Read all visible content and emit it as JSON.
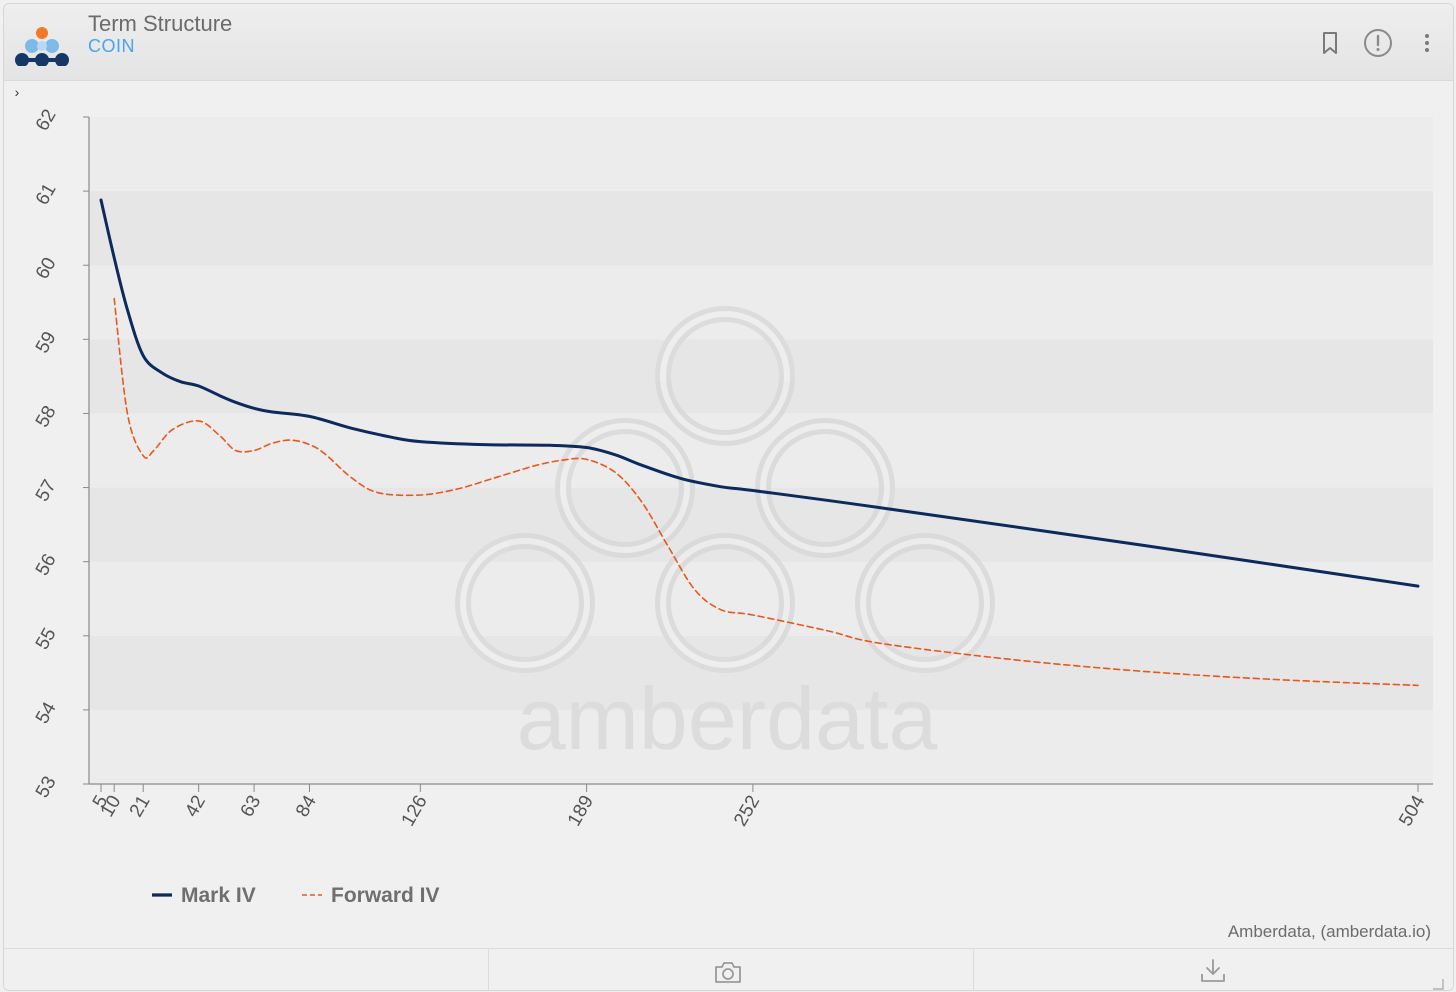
{
  "header": {
    "title": "Term Structure",
    "subtitle": "COIN",
    "bookmark_icon": "bookmark-icon",
    "info_icon": "alert-circle-icon",
    "menu_icon": "more-vertical-icon",
    "panel_toggle_icon": "chevron-right-icon",
    "panel_toggle_glyph": "›"
  },
  "watermark": "amberdata",
  "attribution": "Amberdata, (amberdata.io)",
  "footer": {
    "camera_icon": "camera-icon",
    "download_icon": "download-icon"
  },
  "colors": {
    "mark_iv": "#0d2a5c",
    "forward_iv": "#e8571c",
    "subtitle": "#4aa3f0",
    "band": "#e6e6e6"
  },
  "chart_data": {
    "type": "line",
    "ylim": [
      53,
      62
    ],
    "xlim": [
      5,
      504
    ],
    "y_ticks": [
      53,
      54,
      55,
      56,
      57,
      58,
      59,
      60,
      61,
      62
    ],
    "x_ticks": [
      5,
      10,
      21,
      42,
      63,
      84,
      126,
      189,
      252,
      504
    ],
    "grid": "horizontal bands",
    "legend_position": "bottom-left",
    "series": [
      {
        "name": "Mark IV",
        "style": "solid",
        "x": [
          5,
          10,
          15,
          21,
          28,
          35,
          42,
          50,
          56,
          63,
          70,
          84,
          100,
          115,
          126,
          150,
          175,
          189,
          200,
          210,
          225,
          240,
          252,
          300,
          400,
          504
        ],
        "y": [
          60.88,
          60.1,
          59.4,
          58.78,
          58.55,
          58.43,
          58.37,
          58.24,
          58.15,
          58.07,
          58.02,
          57.96,
          57.8,
          57.68,
          57.62,
          57.58,
          57.57,
          57.54,
          57.44,
          57.3,
          57.12,
          57.01,
          56.96,
          56.73,
          56.22,
          55.67
        ]
      },
      {
        "name": "Forward IV",
        "style": "dashed",
        "x": [
          10,
          15,
          21,
          25,
          32,
          42,
          50,
          56,
          63,
          70,
          77,
          84,
          90,
          100,
          110,
          126,
          140,
          155,
          170,
          180,
          189,
          200,
          210,
          220,
          230,
          240,
          252,
          280,
          300,
          350,
          400,
          450,
          504
        ],
        "y": [
          59.55,
          58.0,
          57.43,
          57.5,
          57.78,
          57.9,
          57.7,
          57.5,
          57.5,
          57.6,
          57.64,
          57.58,
          57.45,
          57.13,
          56.93,
          56.9,
          56.98,
          57.14,
          57.3,
          57.37,
          57.38,
          57.2,
          56.8,
          56.2,
          55.62,
          55.35,
          55.28,
          55.07,
          54.9,
          54.68,
          54.52,
          54.41,
          54.33
        ]
      }
    ]
  }
}
